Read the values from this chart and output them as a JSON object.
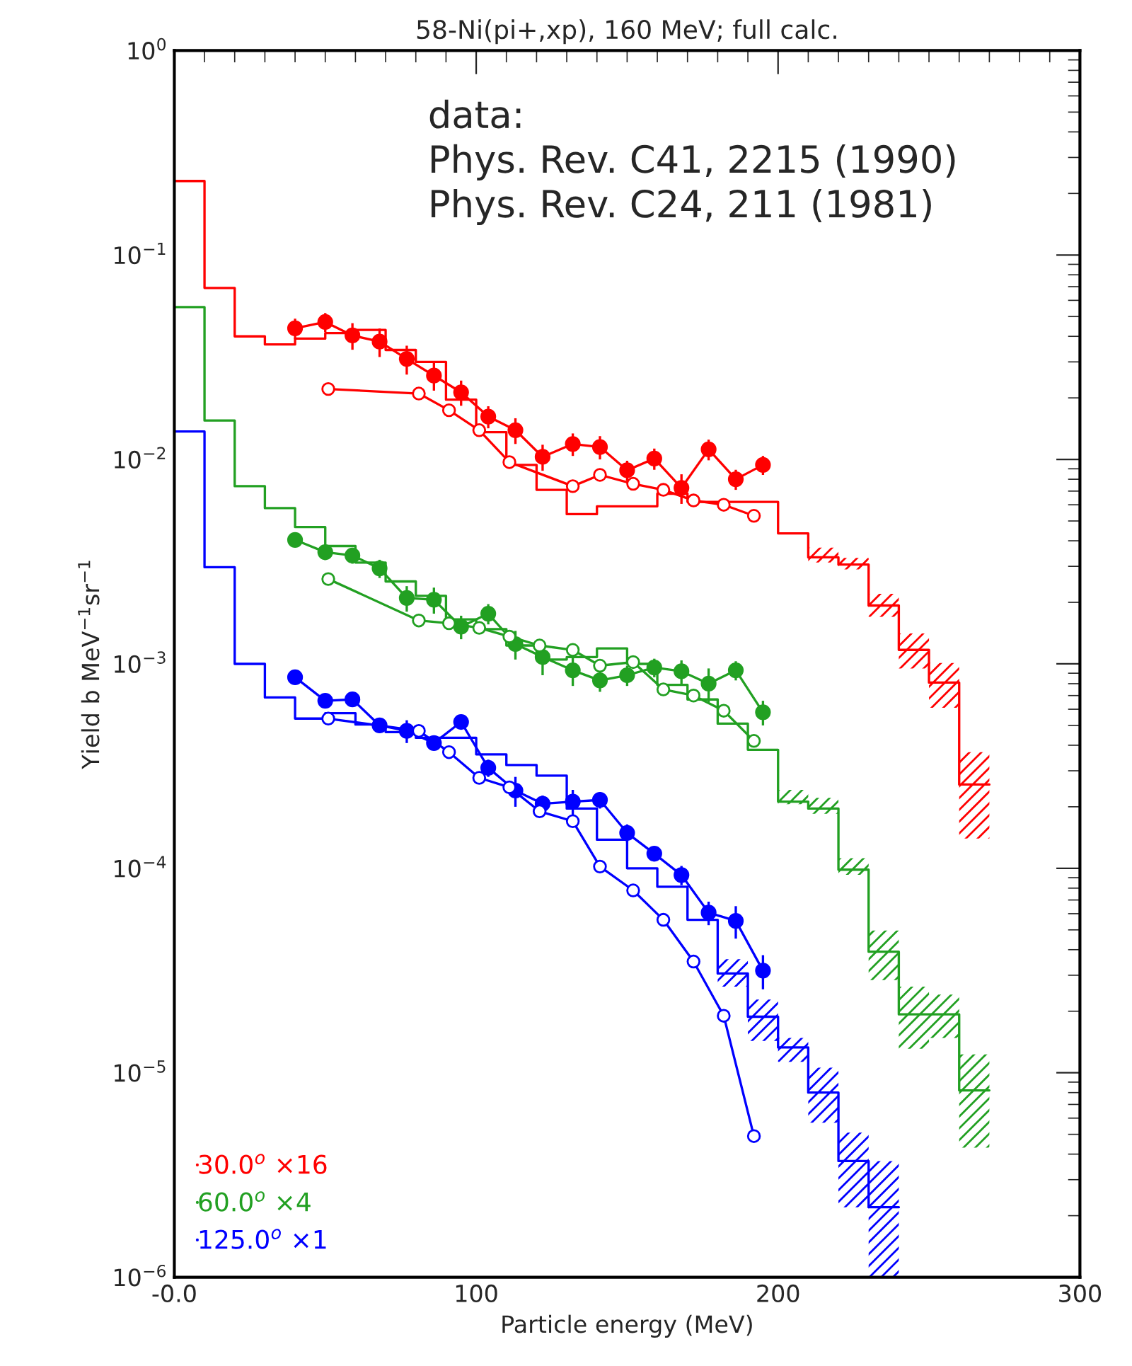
{
  "chart_data": {
    "type": "step",
    "title": "58-Ni(pi+,xp), 160 MeV; full calc.",
    "xlabel": "Particle energy (MeV)",
    "ylabel": "Yield b MeV$^{−1}$sr$^{−1}$",
    "annotations": [
      "data:\nPhys. Rev. C41, 2215 (1990)\nPhys. Rev. C24, 211 (1981)"
    ],
    "xlim": [
      0,
      300
    ],
    "xticks": [
      {
        "value": 0,
        "label": "-0.0"
      },
      100,
      200,
      300
    ],
    "ylim": [
      1e-06,
      1
    ],
    "log": "y",
    "yticks": [
      {
        "value": 1e-06,
        "label": "10$^{−6}$"
      },
      {
        "value": 1e-05,
        "label": "10$^{−5}$"
      },
      {
        "value": 0.0001,
        "label": "10$^{−4}$"
      },
      {
        "value": 0.001,
        "label": "10$^{−3}$"
      },
      {
        "value": 0.01,
        "label": "10$^{−2}$"
      },
      {
        "value": 0.1,
        "label": "10$^{−1}$"
      },
      {
        "value": 1,
        "label": "10$^{0}$"
      }
    ],
    "grid": false,
    "legend": "bottom left",
    "series": [
      {
        "name": "30.0$^{o}$ ×16",
        "color": "#ff0000",
        "x": [
          0,
          10,
          20,
          30,
          40,
          50,
          60,
          70,
          80,
          90,
          100,
          110,
          120,
          130,
          140,
          150,
          160,
          170,
          180,
          190,
          200,
          210,
          220,
          230,
          240,
          250,
          260,
          270
        ],
        "values": [
          0.23,
          0.069,
          0.04,
          0.0365,
          0.039,
          0.0415,
          0.043,
          0.0343,
          0.03,
          0.0196,
          0.0136,
          0.0094,
          0.0071,
          0.0054,
          0.0059,
          0.0059,
          0.0068,
          0.0062,
          0.0062,
          0.0062,
          0.00435,
          0.00332,
          0.00306,
          0.00193,
          0.00117,
          0.00081,
          0.000257,
          0.000257
        ],
        "lower": [
          null,
          null,
          null,
          null,
          null,
          null,
          null,
          null,
          null,
          null,
          null,
          null,
          null,
          null,
          null,
          null,
          null,
          null,
          null,
          null,
          null,
          0.00313,
          0.0029,
          0.0017,
          0.00095,
          0.00061,
          0.00014,
          0.00014
        ],
        "upper": [
          null,
          null,
          null,
          null,
          null,
          null,
          null,
          null,
          null,
          null,
          null,
          null,
          null,
          null,
          null,
          null,
          null,
          null,
          null,
          null,
          null,
          0.0037,
          0.0033,
          0.0022,
          0.00141,
          0.00101,
          0.00037,
          0.00037
        ]
      },
      {
        "name": "60.0$^{o}$ ×4",
        "color": "#22a022",
        "x": [
          0,
          10,
          20,
          30,
          40,
          50,
          60,
          70,
          80,
          90,
          100,
          110,
          120,
          130,
          140,
          150,
          160,
          170,
          180,
          190,
          200,
          210,
          220,
          230,
          240,
          250,
          260,
          270
        ],
        "values": [
          0.0556,
          0.0155,
          0.0074,
          0.00578,
          0.00467,
          0.00377,
          0.00313,
          0.00253,
          0.00215,
          0.00165,
          0.00148,
          0.00123,
          0.00105,
          0.00108,
          0.00119,
          0.001,
          0.00079,
          0.00067,
          0.00051,
          0.00038,
          0.000212,
          0.000196,
          9.85e-05,
          3.91e-05,
          1.93e-05,
          1.93e-05,
          8.2e-06,
          8.2e-06
        ],
        "lower": [
          null,
          null,
          null,
          null,
          null,
          null,
          null,
          null,
          null,
          null,
          null,
          null,
          null,
          null,
          null,
          null,
          null,
          null,
          null,
          null,
          0.000206,
          0.000185,
          9.3e-05,
          2.84e-05,
          1.31e-05,
          1.48e-05,
          4.3e-06,
          4.3e-06
        ],
        "upper": [
          null,
          null,
          null,
          null,
          null,
          null,
          null,
          null,
          null,
          null,
          null,
          null,
          null,
          null,
          null,
          null,
          null,
          null,
          null,
          null,
          0.000242,
          0.000221,
          0.000112,
          4.96e-05,
          2.64e-05,
          2.41e-05,
          1.23e-05,
          1.23e-05
        ]
      },
      {
        "name": "125.0$^{o}$ ×1",
        "color": "#0000ff",
        "x": [
          0,
          10,
          20,
          30,
          40,
          50,
          60,
          70,
          80,
          90,
          100,
          110,
          120,
          130,
          140,
          150,
          160,
          170,
          180,
          190,
          200,
          210,
          220,
          230,
          240
        ],
        "values": [
          0.0137,
          0.00297,
          0.001,
          0.000685,
          0.00054,
          0.000574,
          0.000505,
          0.000464,
          0.000435,
          0.000435,
          0.000361,
          0.00032,
          0.000284,
          0.000196,
          0.000138,
          0.0001,
          8.13e-05,
          5.6e-05,
          3.06e-05,
          1.88e-05,
          1.33e-05,
          8e-06,
          3.7e-06,
          2.2e-06,
          2.2e-06
        ],
        "lower": [
          null,
          null,
          null,
          null,
          null,
          null,
          null,
          null,
          null,
          null,
          null,
          null,
          null,
          null,
          null,
          null,
          null,
          null,
          2.64e-05,
          1.43e-05,
          1.13e-05,
          5.7e-06,
          2.2e-06,
          1e-06,
          1e-06
        ],
        "upper": [
          null,
          null,
          null,
          null,
          null,
          null,
          null,
          null,
          null,
          null,
          null,
          null,
          null,
          null,
          null,
          null,
          null,
          null,
          3.59e-05,
          2.28e-05,
          1.48e-05,
          1.06e-05,
          5.1e-06,
          3.7e-06,
          3.7e-06
        ]
      },
      {
        "type": "line",
        "color": "#ff0000",
        "marker": "circle",
        "x": [
          40,
          50,
          59,
          68,
          77,
          86,
          95,
          104,
          113,
          122,
          132,
          141,
          150,
          159,
          168,
          177,
          186,
          195
        ],
        "values": [
          0.0438,
          0.047,
          0.0404,
          0.0377,
          0.031,
          0.0257,
          0.0213,
          0.0162,
          0.0139,
          0.0103,
          0.0119,
          0.0115,
          0.00885,
          0.0101,
          0.00726,
          0.0112,
          0.008,
          0.0094
        ],
        "errors": [
          0.005,
          0.005,
          0.006,
          0.006,
          0.005,
          0.004,
          0.003,
          0.002,
          0.002,
          0.0015,
          0.0015,
          0.0015,
          0.001,
          0.0012,
          0.0012,
          0.0013,
          0.0009,
          0.001
        ]
      },
      {
        "type": "line",
        "color": "#ff0000",
        "marker": "circle",
        "x": [
          51,
          81,
          91,
          101,
          111,
          132,
          141,
          152,
          162,
          172,
          182,
          192
        ],
        "values": [
          0.0221,
          0.021,
          0.0174,
          0.0139,
          0.0097,
          0.0074,
          0.0084,
          0.0076,
          0.0071,
          0.0063,
          0.006,
          0.0053
        ]
      },
      {
        "type": "line",
        "color": "#22a022",
        "marker": "circle",
        "x": [
          40,
          50,
          59,
          68,
          77,
          86,
          95,
          104,
          113,
          122,
          132,
          141,
          150,
          159,
          168,
          177,
          186,
          195
        ],
        "values": [
          0.00404,
          0.00352,
          0.00339,
          0.00293,
          0.0021,
          0.00206,
          0.00152,
          0.00176,
          0.00125,
          0.00108,
          0.00093,
          0.00083,
          0.00088,
          0.00096,
          0.00092,
          0.0008,
          0.00093,
          0.00058
        ],
        "errors": [
          0.0003,
          0.0003,
          0.0003,
          0.0003,
          0.0003,
          0.0003,
          0.0002,
          0.0002,
          0.0002,
          0.0002,
          0.00015,
          0.0001,
          0.0001,
          0.0001,
          0.00012,
          0.00015,
          0.0001,
          8e-05
        ]
      },
      {
        "type": "line",
        "color": "#22a022",
        "marker": "circle",
        "x": [
          51,
          81,
          91,
          101,
          111,
          121,
          132,
          141,
          152,
          162,
          172,
          182,
          192
        ],
        "values": [
          0.0026,
          0.00163,
          0.00158,
          0.0015,
          0.00136,
          0.00123,
          0.00117,
          0.00098,
          0.00102,
          0.00075,
          0.0007,
          0.00059,
          0.00042
        ]
      },
      {
        "type": "line",
        "color": "#0000ff",
        "marker": "circle",
        "x": [
          40,
          50,
          59,
          68,
          77,
          86,
          95,
          104,
          113,
          122,
          132,
          141,
          150,
          159,
          168,
          177,
          186,
          195
        ],
        "values": [
          0.00086,
          0.00066,
          0.00067,
          0.0005,
          0.00047,
          0.00041,
          0.00052,
          0.00031,
          0.00024,
          0.000207,
          0.000212,
          0.000216,
          0.000149,
          0.000118,
          9.27e-05,
          6.07e-05,
          5.53e-05,
          3.16e-05
        ],
        "errors": [
          6e-05,
          5e-05,
          5e-05,
          4e-05,
          6e-05,
          3e-05,
          4e-05,
          3e-05,
          4e-05,
          2e-05,
          3e-05,
          2e-05,
          1.5e-05,
          1e-05,
          1e-05,
          8e-06,
          1e-05,
          6e-06
        ]
      },
      {
        "type": "line",
        "color": "#0000ff",
        "marker": "circle",
        "x": [
          51,
          81,
          91,
          101,
          111,
          121,
          132,
          141,
          152,
          162,
          172,
          182,
          192
        ],
        "values": [
          0.00054,
          0.00047,
          0.00037,
          0.000277,
          0.000249,
          0.00019,
          0.00017,
          0.000102,
          7.8e-05,
          5.6e-05,
          3.5e-05,
          1.9e-05,
          4.9e-06
        ]
      }
    ]
  }
}
